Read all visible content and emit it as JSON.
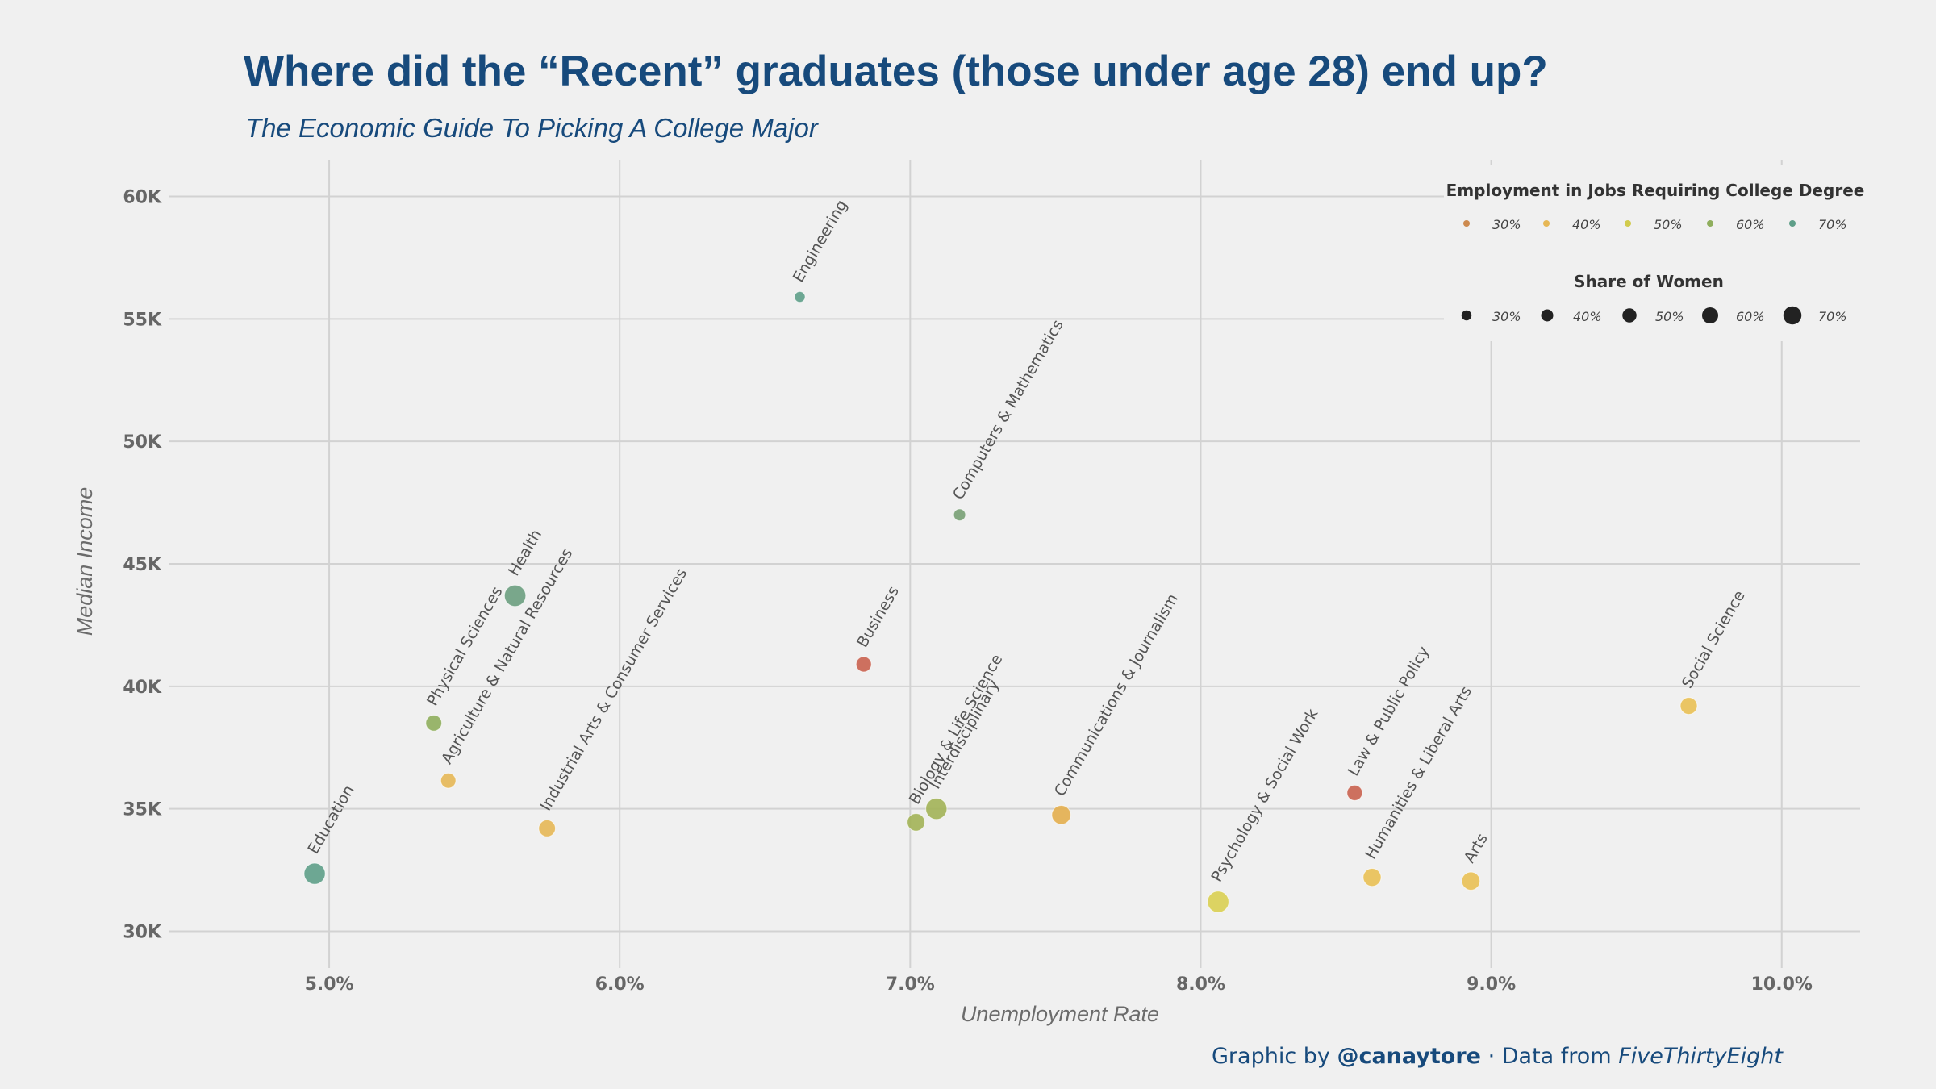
{
  "title": "Where did the “Recent” graduates (those under age 28) end up?",
  "subtitle": "The Economic Guide To Picking A College Major",
  "caption": {
    "prefix": "Graphic by ",
    "author": "@canaytore",
    "middle": " · Data from ",
    "source": "FiveThirtyEight"
  },
  "chart_data": {
    "type": "scatter",
    "xlabel": "Unemployment Rate",
    "ylabel": "Median Income",
    "xlim": [
      0.0445,
      0.1027
    ],
    "ylim": [
      28500,
      61500
    ],
    "x_ticks": [
      0.05,
      0.06,
      0.07,
      0.08,
      0.09,
      0.1
    ],
    "x_tick_labels": [
      "5.0%",
      "6.0%",
      "7.0%",
      "8.0%",
      "9.0%",
      "10.0%"
    ],
    "y_ticks": [
      30000,
      35000,
      40000,
      45000,
      50000,
      55000,
      60000
    ],
    "y_tick_labels": [
      "30K",
      "35K",
      "40K",
      "45K",
      "50K",
      "55K",
      "60K"
    ],
    "grid": true,
    "color_legend": {
      "title": "Employment in Jobs Requiring College Degree",
      "entries": [
        {
          "label": "30%",
          "color": "#cd8a4f"
        },
        {
          "label": "40%",
          "color": "#e6b755"
        },
        {
          "label": "50%",
          "color": "#d1cb4d"
        },
        {
          "label": "60%",
          "color": "#8fae5d"
        },
        {
          "label": "70%",
          "color": "#5e9e88"
        }
      ]
    },
    "size_legend": {
      "title": "Share of Women",
      "entries": [
        {
          "label": "30%",
          "value": 0.3
        },
        {
          "label": "40%",
          "value": 0.4
        },
        {
          "label": "50%",
          "value": 0.5
        },
        {
          "label": "60%",
          "value": 0.6
        },
        {
          "label": "70%",
          "value": 0.7
        }
      ]
    },
    "legend_position": "top-right",
    "points": [
      {
        "label": "Education",
        "x": 0.0495,
        "y": 32350,
        "color": "#5e9e88",
        "women": 0.77
      },
      {
        "label": "Physical Sciences",
        "x": 0.0536,
        "y": 38500,
        "color": "#8fae5d",
        "women": 0.51
      },
      {
        "label": "Agriculture & Natural Resources",
        "x": 0.0541,
        "y": 36150,
        "color": "#e6b755",
        "women": 0.47
      },
      {
        "label": "Health",
        "x": 0.0564,
        "y": 43700,
        "color": "#6b9e7f",
        "women": 0.78
      },
      {
        "label": "Industrial Arts & Consumer Services",
        "x": 0.0575,
        "y": 34200,
        "color": "#e6b755",
        "women": 0.55
      },
      {
        "label": "Engineering",
        "x": 0.0662,
        "y": 55900,
        "color": "#5e9e88",
        "women": 0.25
      },
      {
        "label": "Business",
        "x": 0.0684,
        "y": 40900,
        "color": "#c9624f",
        "women": 0.48
      },
      {
        "label": "Biology & Life Science",
        "x": 0.0702,
        "y": 34450,
        "color": "#a2b256",
        "women": 0.59
      },
      {
        "label": "Interdisciplinary",
        "x": 0.0709,
        "y": 35000,
        "color": "#a2b256",
        "women": 0.77
      },
      {
        "label": "Computers & Mathematics",
        "x": 0.0717,
        "y": 47000,
        "color": "#78a074",
        "women": 0.31
      },
      {
        "label": "Communications & Journalism",
        "x": 0.0752,
        "y": 34750,
        "color": "#e3ae4e",
        "women": 0.66
      },
      {
        "label": "Psychology & Social Work",
        "x": 0.0806,
        "y": 31200,
        "color": "#d9cf52",
        "women": 0.78
      },
      {
        "label": "Law & Public Policy",
        "x": 0.0853,
        "y": 35650,
        "color": "#c9624f",
        "women": 0.48
      },
      {
        "label": "Humanities & Liberal Arts",
        "x": 0.0859,
        "y": 32200,
        "color": "#e9c054",
        "women": 0.61
      },
      {
        "label": "Arts",
        "x": 0.0893,
        "y": 32050,
        "color": "#e9c054",
        "women": 0.62
      },
      {
        "label": "Social Science",
        "x": 0.0968,
        "y": 39200,
        "color": "#e9c054",
        "women": 0.56
      }
    ]
  }
}
